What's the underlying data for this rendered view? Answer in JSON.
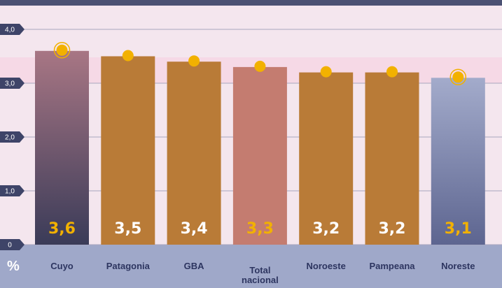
{
  "chart_data": {
    "type": "bar",
    "y_unit": "%",
    "categories": [
      "Cuyo",
      "Patagonia",
      "GBA",
      "Total nacional",
      "Noroeste",
      "Pampeana",
      "Noreste"
    ],
    "values": [
      3.6,
      3.5,
      3.4,
      3.3,
      3.2,
      3.2,
      3.1
    ],
    "value_labels": [
      "3,6",
      "3,5",
      "3,4",
      "3,3",
      "3,2",
      "3,2",
      "3,1"
    ],
    "colors": [
      [
        "#a87684",
        "#3a3b58"
      ],
      "#b97b37",
      "#b97b37",
      "#c47c70",
      "#b97b37",
      "#b97b37",
      [
        "#a3abcb",
        "#5d6590"
      ]
    ],
    "label_colors": [
      "#f2b100",
      "#ffffff",
      "#ffffff",
      "#f2b100",
      "#ffffff",
      "#ffffff",
      "#f2b100"
    ],
    "marker_color": "#f2b100",
    "ylim": [
      0,
      4
    ],
    "yticks": [
      0,
      {
        "value": 1,
        "label": "1,0"
      },
      {
        "value": 2,
        "label": "2,0"
      },
      {
        "value": 3,
        "label": "3,0"
      },
      {
        "value": 4,
        "label": "4,0"
      }
    ],
    "grid": true
  }
}
